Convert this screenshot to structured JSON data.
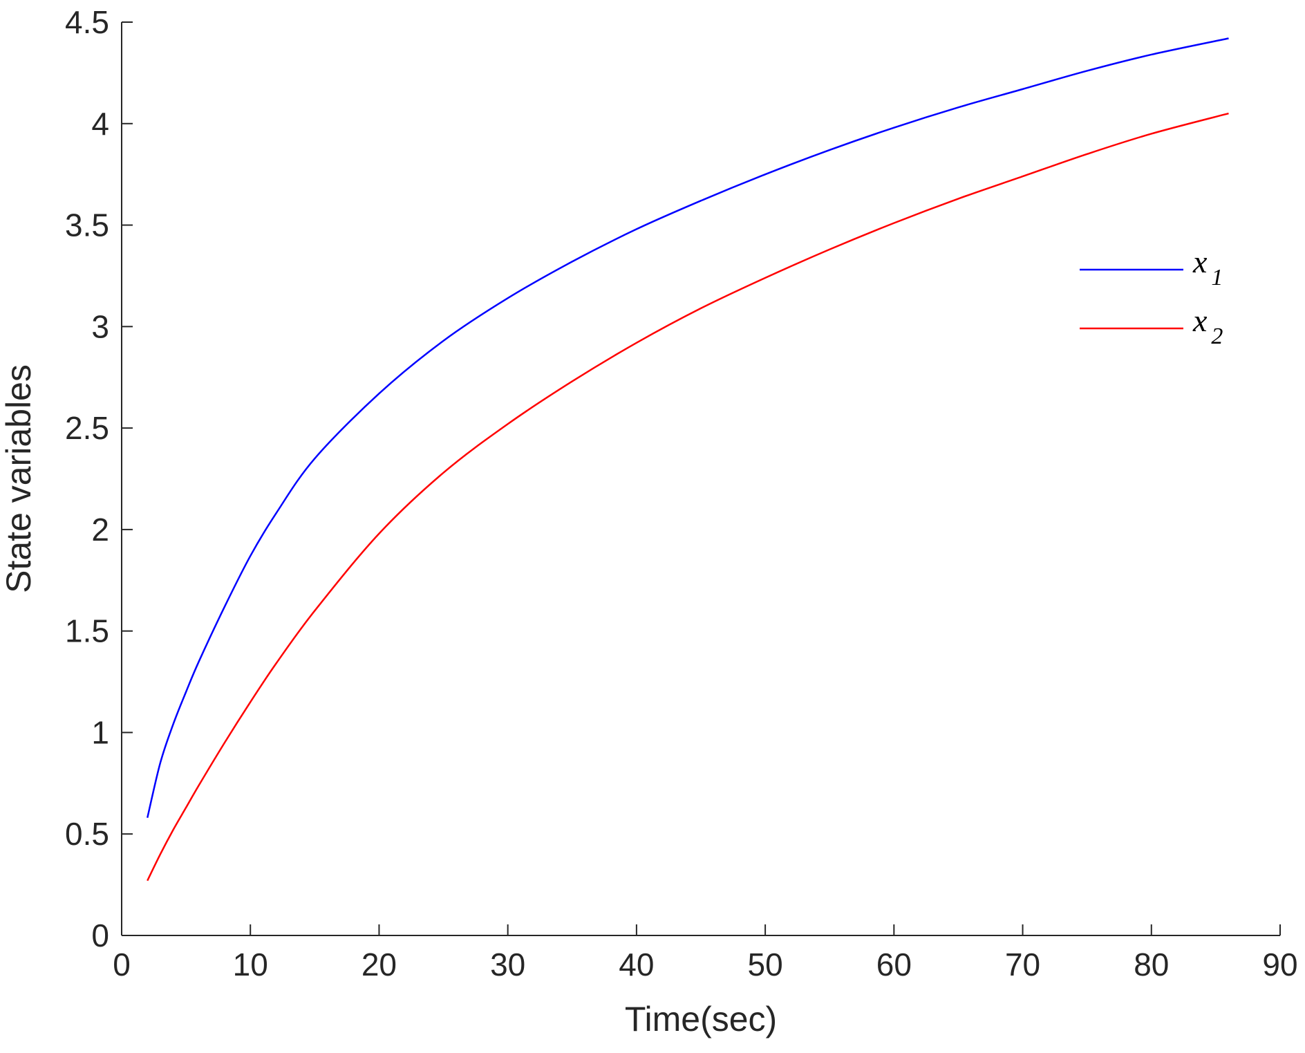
{
  "chart_data": {
    "type": "line",
    "xlabel": "Time(sec)",
    "ylabel": "State variables",
    "xlim": [
      0,
      90
    ],
    "ylim": [
      0,
      4.5
    ],
    "xticks": [
      "0",
      "10",
      "20",
      "30",
      "40",
      "50",
      "60",
      "70",
      "80",
      "90"
    ],
    "yticks": [
      "0",
      "0.5",
      "1",
      "1.5",
      "2",
      "2.5",
      "3",
      "3.5",
      "4",
      "4.5"
    ],
    "grid": false,
    "legend_position": "upper-right",
    "series": [
      {
        "symbol": "x",
        "subscript": "1",
        "color": "#0000ff",
        "x": [
          2,
          3,
          4,
          5,
          6,
          8,
          10,
          12,
          15,
          20,
          25,
          30,
          35,
          40,
          45,
          50,
          55,
          60,
          65,
          70,
          75,
          80,
          86
        ],
        "y": [
          0.58,
          0.85,
          1.04,
          1.2,
          1.35,
          1.62,
          1.87,
          2.08,
          2.35,
          2.67,
          2.93,
          3.14,
          3.32,
          3.48,
          3.62,
          3.75,
          3.87,
          3.98,
          4.08,
          4.17,
          4.26,
          4.34,
          4.42
        ]
      },
      {
        "symbol": "x",
        "subscript": "2",
        "color": "#ff0000",
        "x": [
          2,
          3,
          4,
          5,
          6,
          8,
          10,
          12,
          15,
          20,
          25,
          30,
          35,
          40,
          45,
          50,
          55,
          60,
          65,
          70,
          75,
          80,
          86
        ],
        "y": [
          0.27,
          0.4,
          0.52,
          0.63,
          0.74,
          0.95,
          1.15,
          1.34,
          1.6,
          1.98,
          2.28,
          2.52,
          2.73,
          2.92,
          3.09,
          3.24,
          3.38,
          3.51,
          3.63,
          3.74,
          3.85,
          3.95,
          4.05
        ]
      }
    ]
  }
}
